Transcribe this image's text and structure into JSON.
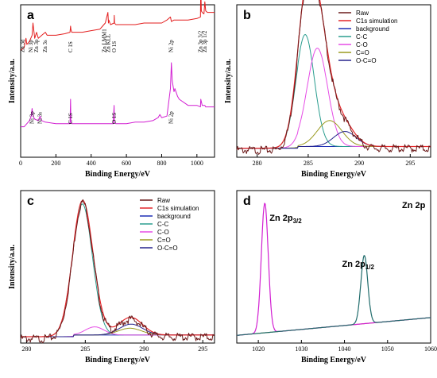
{
  "colors": {
    "raw": "#6b1a1a",
    "c1s_simulation": "#e3262a",
    "background": "#1e2fb5",
    "cc": "#2a9d8f",
    "co": "#e64ce6",
    "c_eq_o": "#9a9a20",
    "ocoo": "#25238c",
    "survey_top": "#e31e1e",
    "survey_bottom": "#d21fd2",
    "zn_left": "#d21fd2",
    "zn_right": "#1f6b6b",
    "zn_bg": "#9a9a20"
  },
  "chart_data": [
    {
      "id": "a",
      "letter": "a",
      "type": "line",
      "xlabel": "Binding Energy/eV",
      "ylabel": "Intensity/a.u.",
      "xlim": [
        0,
        1100
      ],
      "xticks": [
        0,
        200,
        400,
        600,
        800,
        1000
      ],
      "tick_labels": [
        "0",
        "200",
        "400",
        "600",
        "800",
        "1000"
      ],
      "series": [
        {
          "x": [
            0,
            20,
            30,
            35,
            50,
            65,
            70,
            80,
            90,
            100,
            120,
            140,
            150,
            200,
            250,
            280,
            283,
            285,
            290,
            300,
            350,
            400,
            450,
            480,
            495,
            498,
            500,
            510,
            530,
            531,
            533,
            540,
            560,
            600,
            650,
            700,
            750,
            800,
            830,
            850,
            855,
            870,
            900,
            950,
            1000,
            1020,
            1022,
            1025,
            1030,
            1040,
            1045,
            1050,
            1060,
            1080,
            1100
          ],
          "y": [
            0.7,
            0.72,
            0.78,
            0.74,
            0.76,
            0.8,
            0.88,
            0.78,
            0.82,
            0.78,
            0.8,
            0.82,
            0.8,
            0.8,
            0.81,
            0.82,
            0.86,
            0.84,
            0.82,
            0.82,
            0.82,
            0.83,
            0.84,
            0.88,
            0.95,
            0.88,
            0.9,
            0.87,
            0.88,
            0.93,
            0.88,
            0.87,
            0.87,
            0.87,
            0.87,
            0.88,
            0.88,
            0.88,
            0.9,
            0.92,
            0.89,
            0.9,
            0.9,
            0.9,
            0.91,
            0.92,
            1.12,
            0.96,
            0.95,
            0.94,
            1.02,
            0.96,
            0.95,
            0.95,
            0.95
          ]
        },
        {
          "x": [
            0,
            20,
            50,
            60,
            65,
            70,
            80,
            100,
            110,
            120,
            140,
            200,
            250,
            280,
            283,
            285,
            290,
            300,
            350,
            400,
            450,
            500,
            525,
            530,
            532,
            540,
            600,
            650,
            700,
            750,
            780,
            790,
            800,
            830,
            850,
            855,
            860,
            870,
            875,
            890,
            900,
            950,
            1000,
            1020,
            1022,
            1030,
            1045,
            1050,
            1100
          ],
          "y": [
            0.2,
            0.2,
            0.24,
            0.27,
            0.32,
            0.27,
            0.25,
            0.24,
            0.27,
            0.24,
            0.23,
            0.22,
            0.22,
            0.22,
            0.38,
            0.23,
            0.22,
            0.22,
            0.22,
            0.22,
            0.22,
            0.22,
            0.22,
            0.34,
            0.23,
            0.22,
            0.22,
            0.23,
            0.23,
            0.24,
            0.26,
            0.28,
            0.26,
            0.27,
            0.45,
            0.62,
            0.5,
            0.43,
            0.45,
            0.4,
            0.38,
            0.34,
            0.34,
            0.33,
            0.38,
            0.34,
            0.34,
            0.33,
            0.33
          ]
        }
      ],
      "annotations_top": [
        {
          "text": "Zn 3d",
          "x": 12
        },
        {
          "text": "Ni 3p",
          "x": 58
        },
        {
          "text": "Zn 3p",
          "x": 90
        },
        {
          "text": "Zn 3s",
          "x": 140
        },
        {
          "text": "C 1S",
          "x": 285
        },
        {
          "text": "Zn LMM1",
          "x": 475
        },
        {
          "text": "Zn KLL",
          "x": 498
        },
        {
          "text": "O 1S",
          "x": 531
        },
        {
          "text": "Ni 2p",
          "x": 855
        },
        {
          "text": "Zn 3p 3/2",
          "x": 1022
        },
        {
          "text": "Zn 3p 1/2",
          "x": 1045
        }
      ],
      "annotations_bottom": [
        {
          "text": "Ni 3p",
          "x": 65
        },
        {
          "text": "Ni 3s",
          "x": 110
        },
        {
          "text": "C 1S",
          "x": 285
        },
        {
          "text": "O 1S",
          "x": 531
        },
        {
          "text": "Ni 2p",
          "x": 855
        }
      ]
    },
    {
      "id": "b",
      "letter": "b",
      "type": "line",
      "xlabel": "Binding Energy/eV",
      "ylabel": "Intensity/a.u.",
      "xlim": [
        278,
        297
      ],
      "xticks": [
        280,
        285,
        290,
        295
      ],
      "tick_labels": [
        "280",
        "285",
        "290",
        "295"
      ],
      "legend": [
        "Raw",
        "C1s simulation",
        "background",
        "C-C",
        "C-O",
        "C=O",
        "O-C=O"
      ],
      "baseline": 0.02,
      "components": [
        {
          "name": "C-C",
          "center": 284.7,
          "height": 0.82,
          "width": 0.9
        },
        {
          "name": "C-O",
          "center": 285.9,
          "height": 0.72,
          "width": 1.0
        },
        {
          "name": "C=O",
          "center": 287.1,
          "height": 0.19,
          "width": 1.2
        },
        {
          "name": "O-C=O",
          "center": 288.6,
          "height": 0.11,
          "width": 1.1
        }
      ]
    },
    {
      "id": "c",
      "letter": "c",
      "type": "line",
      "xlabel": "Binding Energy/eV",
      "ylabel": "Intensity/a.u.",
      "xlim": [
        279.5,
        296
      ],
      "xticks": [
        280,
        285,
        290,
        295
      ],
      "tick_labels": [
        "280",
        "285",
        "290",
        "295"
      ],
      "legend": [
        "Raw",
        "C1s simulation",
        "background",
        "C-C",
        "C-O",
        "C=O",
        "O-C=O"
      ],
      "baseline": 0.0,
      "components": [
        {
          "name": "C-C",
          "center": 284.75,
          "height": 0.96,
          "width": 0.85
        },
        {
          "name": "C-O",
          "center": 285.8,
          "height": 0.06,
          "width": 0.8
        },
        {
          "name": "C=O",
          "center": 288.8,
          "height": 0.05,
          "width": 1.0
        },
        {
          "name": "O-C=O",
          "center": 288.9,
          "height": 0.08,
          "width": 1.0
        }
      ]
    },
    {
      "id": "d",
      "letter": "d",
      "type": "line",
      "title": "Zn 2p",
      "xlabel": "Binding Energy/eV",
      "ylabel": "",
      "xlim": [
        1015,
        1060
      ],
      "xticks": [
        1020,
        1030,
        1040,
        1050,
        1060
      ],
      "tick_labels": [
        "1020",
        "1030",
        "1040",
        "1050",
        "1060"
      ],
      "peaks": [
        {
          "label_main": "Zn 2p",
          "label_sub": "3/2",
          "center": 1021.5,
          "height": 0.95,
          "width": 0.8
        },
        {
          "label_main": "Zn 2p",
          "label_sub": "1/2",
          "center": 1044.6,
          "height": 0.5,
          "width": 0.8
        }
      ],
      "background_from": 0.01,
      "background_to": 0.14
    }
  ]
}
